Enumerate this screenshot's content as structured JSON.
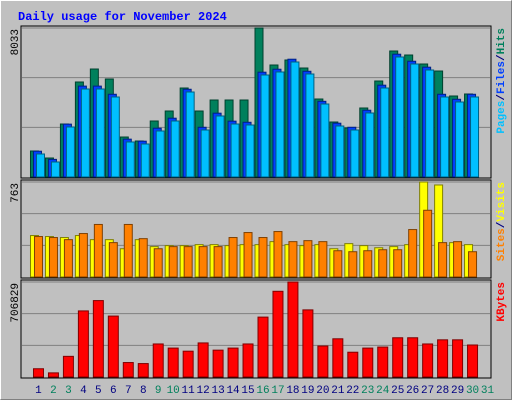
{
  "chart_data": [
    {
      "type": "bar",
      "title": "Daily usage for November 2024",
      "legend_separator": "/",
      "ylim": [
        0,
        8033
      ],
      "yticks": [
        8033
      ],
      "series": [
        {
          "name": "Hits",
          "color": "#00805c",
          "values": [
            1402,
            1024,
            2857,
            5122,
            5822,
            5283,
            2156,
            1941,
            3019,
            3558,
            4798,
            3558,
            4151,
            4151,
            4151,
            8033,
            6038,
            6308,
            5876,
            4205,
            2965,
            2642,
            3720,
            5175,
            6793,
            6577,
            6092,
            5714,
            4367,
            4475,
            null
          ]
        },
        {
          "name": "Files",
          "color": "#0040ff",
          "values": [
            1390,
            950,
            2850,
            4900,
            4900,
            4460,
            2040,
            1930,
            2630,
            3170,
            4730,
            2680,
            3440,
            3010,
            2950,
            5650,
            5810,
            6350,
            5700,
            4080,
            2900,
            2680,
            3600,
            4950,
            6620,
            6240,
            5920,
            4460,
            4190,
            4460,
            null
          ]
        },
        {
          "name": "Pages",
          "color": "#00c0ff",
          "values": [
            1240,
            809,
            2696,
            4744,
            4744,
            4313,
            1887,
            1779,
            2480,
            3019,
            4582,
            2534,
            3289,
            2857,
            2803,
            5499,
            5661,
            6200,
            5553,
            3935,
            2749,
            2534,
            3450,
            4798,
            6469,
            6092,
            5768,
            4313,
            4043,
            4313,
            null
          ]
        }
      ]
    },
    {
      "type": "bar",
      "ylim": [
        0,
        763
      ],
      "yticks": [
        763
      ],
      "series": [
        {
          "name": "Visits",
          "color": "#ffff00",
          "values": [
            333,
            325,
            317,
            333,
            300,
            300,
            227,
            300,
            244,
            252,
            252,
            260,
            260,
            252,
            260,
            260,
            284,
            260,
            252,
            260,
            227,
            268,
            252,
            235,
            244,
            260,
            763,
            739,
            276,
            260,
            null
          ]
        },
        {
          "name": "Sites",
          "color": "#ff8000",
          "values": [
            325,
            317,
            300,
            349,
            422,
            276,
            422,
            308,
            227,
            244,
            244,
            244,
            244,
            317,
            357,
            317,
            365,
            284,
            292,
            284,
            211,
            203,
            211,
            219,
            219,
            381,
            536,
            276,
            284,
            203,
            null
          ]
        }
      ]
    },
    {
      "type": "bar",
      "ylim": [
        0,
        706829
      ],
      "yticks": [
        706829
      ],
      "categories": [
        "1",
        "2",
        "3",
        "4",
        "5",
        "6",
        "7",
        "8",
        "9",
        "10",
        "11",
        "12",
        "13",
        "14",
        "15",
        "16",
        "17",
        "18",
        "19",
        "20",
        "21",
        "22",
        "23",
        "24",
        "25",
        "26",
        "27",
        "28",
        "29",
        "30",
        "31"
      ],
      "category_colors": [
        "#000080",
        "#00805c",
        "#00805c",
        "#000080",
        "#000080",
        "#000080",
        "#000080",
        "#000080",
        "#00805c",
        "#00805c",
        "#000080",
        "#000080",
        "#000080",
        "#000080",
        "#000080",
        "#00805c",
        "#00805c",
        "#000080",
        "#000080",
        "#000080",
        "#000080",
        "#000080",
        "#00805c",
        "#00805c",
        "#000080",
        "#000080",
        "#000080",
        "#000080",
        "#000080",
        "#00805c",
        "#00805c"
      ],
      "series": [
        {
          "name": "KBytes",
          "color": "#ff0000",
          "values": [
            61464,
            30732,
            153660,
            491712,
            568542,
            453297,
            107562,
            99879,
            245856,
            215124,
            192075,
            253539,
            199758,
            215124,
            245856,
            445614,
            637689,
            706829,
            499395,
            230490,
            284271,
            184392,
            215124,
            222807,
            291954,
            291954,
            245856,
            276588,
            276588,
            238173,
            null
          ]
        }
      ]
    }
  ]
}
